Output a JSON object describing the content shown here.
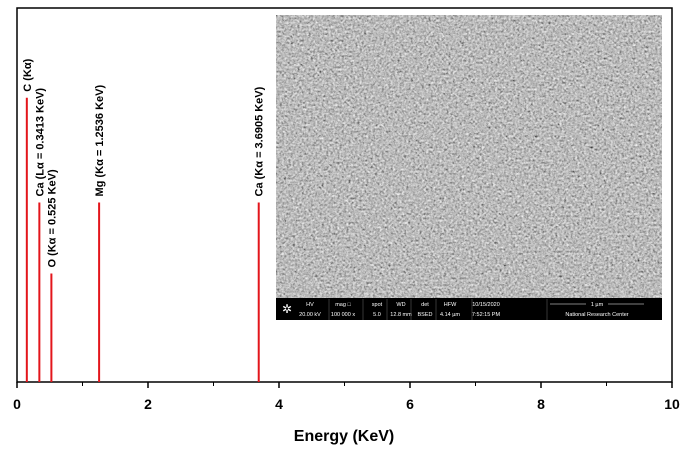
{
  "chart_data": {
    "type": "stem",
    "x_label": "Energy (KeV)",
    "x": [
      0.15,
      0.3413,
      0.525,
      1.2536,
      3.6905
    ],
    "values": [
      76,
      48,
      29,
      48,
      48
    ],
    "annotations": [
      "C (Kα)",
      "Ca (Lα  = 0.3413 KeV)",
      "O (Kα = 0.525 KeV)",
      "Mg (Kα = 1.2536 KeV)",
      "Ca (Kα = 3.6905 KeV)"
    ],
    "color": "#e3151b",
    "xlim": [
      0,
      10
    ],
    "xticks": [
      0,
      2,
      4,
      6,
      8,
      10
    ],
    "xminorticks": [
      1,
      3,
      5,
      7,
      9
    ],
    "ylim": [
      0,
      100
    ]
  },
  "inset": {
    "info": [
      [
        "HV",
        "20.00 kV"
      ],
      [
        "mag □",
        "100 000 x"
      ],
      [
        "spot",
        "5.0"
      ],
      [
        "WD",
        "12.8 mm"
      ],
      [
        "det",
        "BSED"
      ],
      [
        "HFW",
        "4.14 µm"
      ],
      [
        "10/15/2020",
        "7:52:15 PM"
      ],
      [
        "1 µm",
        "National Research Center"
      ]
    ]
  }
}
